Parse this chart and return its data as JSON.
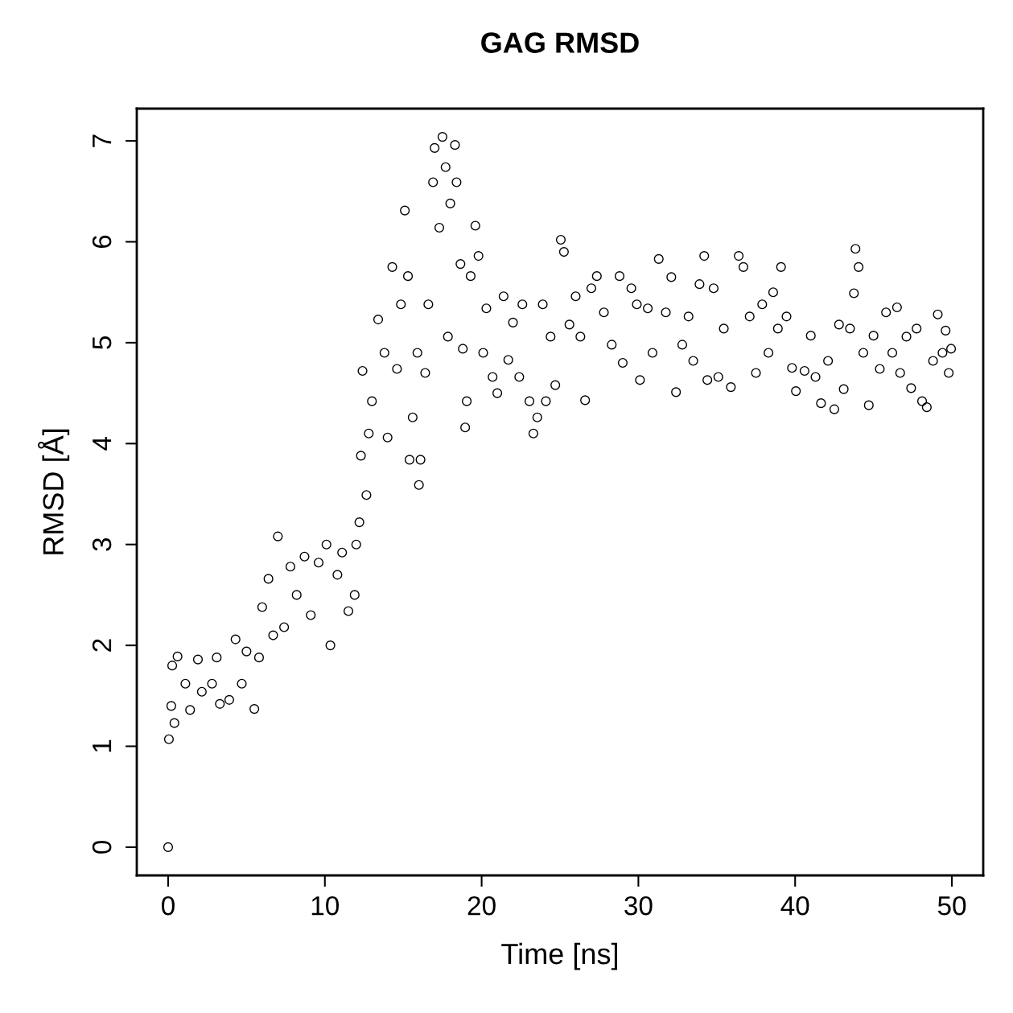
{
  "chart_data": {
    "type": "scatter",
    "title": "GAG RMSD",
    "xlabel": "Time [ns]",
    "ylabel": "RMSD [Å]",
    "xlim": [
      -2,
      52
    ],
    "ylim": [
      -0.28,
      7.32
    ],
    "xticks": [
      0,
      10,
      20,
      30,
      40,
      50
    ],
    "yticks": [
      0,
      1,
      2,
      3,
      4,
      5,
      6,
      7
    ],
    "grid": false,
    "legend": false,
    "marker": "circle",
    "series": [
      {
        "color": "#000000",
        "x": [
          0,
          0.05,
          0.2,
          0.26,
          0.6,
          0.4,
          1.1,
          1.4,
          1.9,
          2.15,
          2.8,
          3.1,
          3.3,
          3.9,
          4.3,
          4.7,
          5.0,
          5.5,
          5.8,
          6.0,
          6.4,
          6.7,
          7.0,
          7.4,
          7.8,
          8.2,
          8.7,
          9.1,
          9.6,
          10.1,
          10.35,
          10.8,
          11.1,
          11.5,
          11.9,
          12.0,
          12.2,
          12.3,
          12.4,
          12.65,
          12.8,
          13.0,
          13.4,
          13.8,
          14.0,
          14.3,
          14.6,
          14.85,
          15.1,
          15.3,
          15.4,
          15.6,
          15.9,
          16.0,
          16.1,
          16.4,
          16.6,
          16.9,
          17.0,
          17.3,
          17.5,
          17.7,
          17.85,
          18.0,
          18.3,
          18.4,
          18.65,
          18.8,
          18.95,
          19.05,
          19.3,
          19.6,
          19.8,
          20.1,
          20.3,
          20.7,
          21.0,
          21.4,
          21.7,
          22.0,
          22.4,
          22.6,
          23.05,
          23.3,
          23.55,
          23.9,
          24.1,
          24.4,
          24.7,
          25.05,
          25.25,
          25.6,
          26.0,
          26.3,
          26.6,
          27.0,
          27.35,
          27.8,
          28.3,
          28.8,
          29.0,
          29.55,
          29.9,
          30.1,
          30.6,
          30.9,
          31.3,
          31.75,
          32.1,
          32.4,
          32.8,
          33.2,
          33.5,
          33.9,
          34.2,
          34.4,
          34.8,
          35.1,
          35.45,
          35.9,
          36.4,
          36.7,
          37.1,
          37.5,
          37.9,
          38.3,
          38.6,
          38.9,
          39.1,
          39.45,
          39.8,
          40.05,
          40.6,
          41.0,
          41.3,
          41.65,
          42.1,
          42.5,
          42.8,
          43.1,
          43.5,
          43.75,
          43.85,
          44.05,
          44.35,
          44.7,
          45.0,
          45.4,
          45.8,
          46.2,
          46.5,
          46.7,
          47.1,
          47.4,
          47.75,
          48.1,
          48.4,
          48.8,
          49.1,
          49.4,
          49.6,
          49.8,
          49.95
        ],
        "values": [
          0,
          1.07,
          1.4,
          1.8,
          1.89,
          1.23,
          1.62,
          1.36,
          1.86,
          1.54,
          1.62,
          1.88,
          1.42,
          1.46,
          2.06,
          1.62,
          1.94,
          1.37,
          1.88,
          2.38,
          2.66,
          2.1,
          3.08,
          2.18,
          2.78,
          2.5,
          2.88,
          2.3,
          2.82,
          3.0,
          2.0,
          2.7,
          2.92,
          2.34,
          2.5,
          3.0,
          3.22,
          3.88,
          4.72,
          3.49,
          4.1,
          4.42,
          5.23,
          4.9,
          4.06,
          5.75,
          4.74,
          5.38,
          6.31,
          5.66,
          3.84,
          4.26,
          4.9,
          3.59,
          3.84,
          4.7,
          5.38,
          6.59,
          6.93,
          6.14,
          7.04,
          6.74,
          5.06,
          6.38,
          6.96,
          6.59,
          5.78,
          4.94,
          4.16,
          4.42,
          5.66,
          6.16,
          5.86,
          4.9,
          5.34,
          4.66,
          4.5,
          5.46,
          4.83,
          5.2,
          4.66,
          5.38,
          4.42,
          4.1,
          4.26,
          5.38,
          4.42,
          5.06,
          4.58,
          6.02,
          5.9,
          5.18,
          5.46,
          5.06,
          4.43,
          5.54,
          5.66,
          5.3,
          4.98,
          5.66,
          4.8,
          5.54,
          5.38,
          4.63,
          5.34,
          4.9,
          5.83,
          5.3,
          5.65,
          4.51,
          4.98,
          5.26,
          4.82,
          5.58,
          5.86,
          4.63,
          5.54,
          4.66,
          5.14,
          4.56,
          5.86,
          5.75,
          5.26,
          4.7,
          5.38,
          4.9,
          5.5,
          5.14,
          5.75,
          5.26,
          4.75,
          4.52,
          4.72,
          5.07,
          4.66,
          4.4,
          4.82,
          4.34,
          5.18,
          4.54,
          5.14,
          5.49,
          5.93,
          5.75,
          4.9,
          4.38,
          5.07,
          4.74,
          5.3,
          4.9,
          5.35,
          4.7,
          5.06,
          4.55,
          5.14,
          4.42,
          4.36,
          4.82,
          5.28,
          4.9,
          5.12,
          4.7,
          4.94
        ]
      }
    ]
  }
}
